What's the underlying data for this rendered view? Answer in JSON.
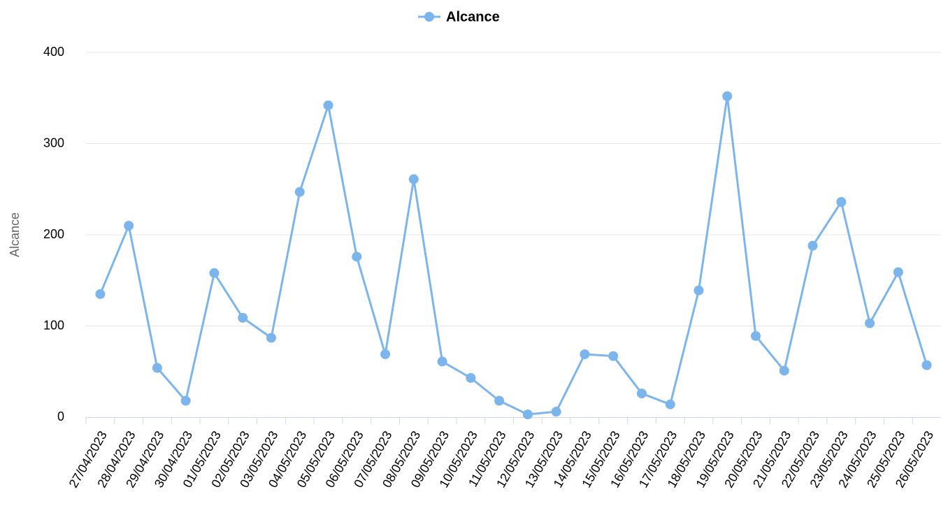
{
  "chart_data": {
    "type": "line",
    "y_axis_label": "Alcance",
    "categories": [
      "27/04/2023",
      "28/04/2023",
      "29/04/2023",
      "30/04/2023",
      "01/05/2023",
      "02/05/2023",
      "03/05/2023",
      "04/05/2023",
      "05/05/2023",
      "06/05/2023",
      "07/05/2023",
      "08/05/2023",
      "09/05/2023",
      "10/05/2023",
      "11/05/2023",
      "12/05/2023",
      "13/05/2023",
      "14/05/2023",
      "15/05/2023",
      "16/05/2023",
      "17/05/2023",
      "18/05/2023",
      "19/05/2023",
      "20/05/2023",
      "21/05/2023",
      "22/05/2023",
      "23/05/2023",
      "24/05/2023",
      "25/05/2023",
      "26/05/2023"
    ],
    "series": [
      {
        "name": "Alcance",
        "color": "#7cb5ec",
        "values": [
          135,
          210,
          54,
          18,
          158,
          109,
          87,
          247,
          342,
          176,
          69,
          261,
          61,
          43,
          18,
          3,
          6,
          69,
          67,
          26,
          14,
          139,
          352,
          89,
          51,
          188,
          236,
          103,
          159,
          57
        ]
      }
    ],
    "ylim": [
      0,
      400
    ],
    "yticks": [
      0,
      100,
      200,
      300,
      400
    ],
    "grid": true,
    "legend": "top"
  }
}
